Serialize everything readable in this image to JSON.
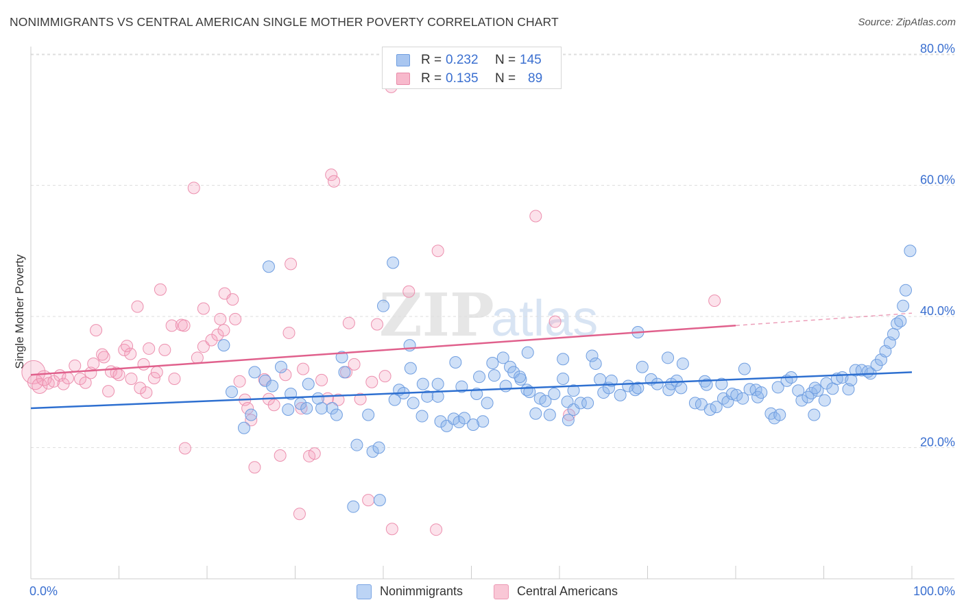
{
  "header": {
    "title": "NONIMMIGRANTS VS CENTRAL AMERICAN SINGLE MOTHER POVERTY CORRELATION CHART",
    "source": "Source: ZipAtlas.com"
  },
  "watermark": {
    "text_zip": "ZIP",
    "text_atlas": "atlas"
  },
  "legend_top": {
    "rows": [
      {
        "r_label": "R =",
        "r_value": "0.232",
        "n_label": "N =",
        "n_value": "145",
        "color": "#a9c6f0",
        "border": "#6e9de0"
      },
      {
        "r_label": "R =",
        "r_value": "0.135",
        "n_label": "N =",
        "n_value": "89",
        "color": "#f7b9cc",
        "border": "#e889a8"
      }
    ]
  },
  "legend_bottom": {
    "items": [
      {
        "label": "Nonimmigrants",
        "color": "#bcd4f5",
        "border": "#7aa5e3"
      },
      {
        "label": "Central Americans",
        "color": "#f9c7d6",
        "border": "#ec98b4"
      }
    ]
  },
  "colors": {
    "blue_fill": "rgba(140,180,235,0.42)",
    "blue_stroke": "#6e9de0",
    "blue_line": "#2d6fd0",
    "pink_fill": "rgba(244,160,190,0.30)",
    "pink_stroke": "#ec8fae",
    "pink_line": "#e0608c",
    "grid": "#dddddd",
    "axis_text": "#3a6fd0"
  },
  "chart_data": {
    "type": "scatter",
    "title": "NONIMMIGRANTS VS CENTRAL AMERICAN SINGLE MOTHER POVERTY CORRELATION CHART",
    "xlabel": "",
    "ylabel": "Single Mother Poverty",
    "xlim": [
      0,
      100
    ],
    "ylim": [
      0,
      80
    ],
    "x_tick_labels": [
      "0.0%",
      "100.0%"
    ],
    "y_ticks": [
      20,
      40,
      60,
      80
    ],
    "y_tick_labels": [
      "20.0%",
      "40.0%",
      "60.0%",
      "80.0%"
    ],
    "grid": "horizontal dashed",
    "legend_position": "bottom",
    "series": [
      {
        "name": "Nonimmigrants",
        "r": 0.232,
        "n": 145,
        "trend": {
          "x": [
            0,
            100
          ],
          "y": [
            26.0,
            31.5
          ],
          "dashed_from": null
        },
        "points": [
          [
            21.9,
            35.6
          ],
          [
            25.4,
            31.5
          ],
          [
            22.8,
            28.5
          ],
          [
            25.0,
            25.0
          ],
          [
            24.2,
            23.0
          ],
          [
            26.6,
            30.2
          ],
          [
            27.0,
            47.6
          ],
          [
            28.4,
            32.3
          ],
          [
            27.4,
            29.4
          ],
          [
            29.5,
            28.2
          ],
          [
            29.2,
            25.8
          ],
          [
            30.6,
            26.7
          ],
          [
            31.5,
            29.7
          ],
          [
            31.3,
            26.0
          ],
          [
            33.0,
            26.0
          ],
          [
            32.6,
            27.5
          ],
          [
            34.2,
            26.0
          ],
          [
            35.6,
            31.5
          ],
          [
            35.3,
            33.8
          ],
          [
            34.7,
            25.0
          ],
          [
            37.0,
            20.4
          ],
          [
            38.3,
            25.0
          ],
          [
            38.8,
            19.4
          ],
          [
            39.5,
            20.0
          ],
          [
            36.6,
            11.0
          ],
          [
            39.6,
            12.0
          ],
          [
            40.0,
            41.6
          ],
          [
            41.1,
            48.2
          ],
          [
            41.3,
            27.3
          ],
          [
            41.8,
            28.8
          ],
          [
            43.0,
            35.6
          ],
          [
            43.1,
            32.1
          ],
          [
            43.4,
            26.8
          ],
          [
            44.5,
            29.7
          ],
          [
            44.4,
            24.8
          ],
          [
            45.0,
            27.8
          ],
          [
            46.2,
            27.8
          ],
          [
            46.2,
            29.7
          ],
          [
            46.5,
            24.0
          ],
          [
            47.2,
            23.3
          ],
          [
            48.0,
            24.4
          ],
          [
            48.6,
            23.9
          ],
          [
            48.9,
            29.3
          ],
          [
            49.2,
            24.5
          ],
          [
            50.6,
            28.2
          ],
          [
            51.3,
            24.0
          ],
          [
            50.2,
            23.5
          ],
          [
            50.9,
            30.8
          ],
          [
            51.8,
            26.8
          ],
          [
            52.6,
            31.0
          ],
          [
            52.4,
            32.9
          ],
          [
            53.6,
            33.7
          ],
          [
            54.4,
            32.3
          ],
          [
            54.8,
            31.5
          ],
          [
            55.6,
            30.4
          ],
          [
            56.3,
            28.8
          ],
          [
            56.6,
            28.5
          ],
          [
            56.4,
            34.5
          ],
          [
            57.3,
            25.2
          ],
          [
            57.8,
            27.5
          ],
          [
            58.4,
            27.1
          ],
          [
            58.9,
            25.0
          ],
          [
            59.4,
            28.2
          ],
          [
            60.4,
            30.5
          ],
          [
            60.4,
            33.5
          ],
          [
            60.9,
            27.0
          ],
          [
            61.6,
            25.8
          ],
          [
            61.6,
            28.7
          ],
          [
            62.4,
            26.8
          ],
          [
            63.2,
            26.8
          ],
          [
            63.7,
            34.0
          ],
          [
            64.1,
            32.8
          ],
          [
            64.6,
            30.4
          ],
          [
            65.0,
            28.4
          ],
          [
            65.6,
            29.1
          ],
          [
            65.9,
            30.2
          ],
          [
            66.9,
            28.0
          ],
          [
            67.8,
            29.4
          ],
          [
            68.6,
            28.8
          ],
          [
            68.9,
            29.1
          ],
          [
            69.4,
            32.3
          ],
          [
            68.9,
            37.6
          ],
          [
            70.4,
            30.4
          ],
          [
            71.1,
            29.7
          ],
          [
            72.3,
            33.7
          ],
          [
            72.4,
            28.8
          ],
          [
            72.7,
            29.7
          ],
          [
            73.3,
            30.2
          ],
          [
            74.0,
            32.8
          ],
          [
            73.8,
            29.1
          ],
          [
            75.4,
            26.8
          ],
          [
            76.1,
            26.6
          ],
          [
            76.5,
            30.1
          ],
          [
            76.7,
            29.6
          ],
          [
            77.1,
            25.8
          ],
          [
            77.8,
            26.2
          ],
          [
            78.4,
            29.7
          ],
          [
            78.6,
            27.5
          ],
          [
            79.1,
            27.0
          ],
          [
            79.6,
            28.2
          ],
          [
            80.1,
            28.0
          ],
          [
            80.8,
            27.5
          ],
          [
            81.0,
            32.0
          ],
          [
            81.6,
            28.9
          ],
          [
            82.3,
            28.8
          ],
          [
            82.5,
            27.7
          ],
          [
            82.9,
            28.4
          ],
          [
            84.0,
            25.2
          ],
          [
            84.4,
            24.5
          ],
          [
            85.0,
            25.0
          ],
          [
            84.8,
            29.2
          ],
          [
            85.8,
            30.2
          ],
          [
            86.3,
            30.7
          ],
          [
            87.1,
            28.7
          ],
          [
            87.5,
            27.2
          ],
          [
            88.2,
            27.7
          ],
          [
            88.6,
            28.3
          ],
          [
            89.3,
            28.7
          ],
          [
            89.0,
            29.1
          ],
          [
            90.1,
            27.2
          ],
          [
            90.3,
            29.8
          ],
          [
            91.0,
            29.0
          ],
          [
            91.5,
            30.5
          ],
          [
            92.1,
            30.7
          ],
          [
            92.8,
            28.9
          ],
          [
            93.1,
            30.3
          ],
          [
            93.6,
            31.8
          ],
          [
            94.3,
            31.8
          ],
          [
            95.3,
            31.3
          ],
          [
            95.0,
            31.6
          ],
          [
            96.0,
            32.6
          ],
          [
            96.5,
            33.4
          ],
          [
            97.0,
            34.7
          ],
          [
            97.5,
            36.0
          ],
          [
            97.9,
            37.3
          ],
          [
            98.3,
            38.9
          ],
          [
            98.7,
            39.3
          ],
          [
            99.0,
            41.6
          ],
          [
            99.3,
            44.0
          ],
          [
            99.8,
            50.0
          ],
          [
            88.9,
            25.0
          ],
          [
            48.2,
            33.0
          ],
          [
            53.9,
            29.4
          ],
          [
            42.3,
            28.3
          ],
          [
            55.5,
            30.8
          ],
          [
            61.0,
            24.2
          ]
        ]
      },
      {
        "name": "Central Americans",
        "r": 0.135,
        "n": 89,
        "trend": {
          "x": [
            0,
            100
          ],
          "y": [
            31.1,
            40.5
          ],
          "dashed_from": 80.0
        },
        "points": [
          [
            0.3,
            31.5
          ],
          [
            0.5,
            30.0
          ],
          [
            1.0,
            29.4
          ],
          [
            1.5,
            30.6
          ],
          [
            2.0,
            29.8
          ],
          [
            2.6,
            30.1
          ],
          [
            3.3,
            31.0
          ],
          [
            3.7,
            29.7
          ],
          [
            4.2,
            30.6
          ],
          [
            5.0,
            32.5
          ],
          [
            5.6,
            30.5
          ],
          [
            6.2,
            29.9
          ],
          [
            6.8,
            31.4
          ],
          [
            7.1,
            32.8
          ],
          [
            7.4,
            37.9
          ],
          [
            8.3,
            33.8
          ],
          [
            8.1,
            34.2
          ],
          [
            8.8,
            28.6
          ],
          [
            9.1,
            31.6
          ],
          [
            9.7,
            31.4
          ],
          [
            10.0,
            31.1
          ],
          [
            10.6,
            34.9
          ],
          [
            10.9,
            35.5
          ],
          [
            11.3,
            34.3
          ],
          [
            11.4,
            30.5
          ],
          [
            12.1,
            41.5
          ],
          [
            12.8,
            32.7
          ],
          [
            12.4,
            29.1
          ],
          [
            13.1,
            28.4
          ],
          [
            13.4,
            35.1
          ],
          [
            14.0,
            30.6
          ],
          [
            14.3,
            31.5
          ],
          [
            14.7,
            44.1
          ],
          [
            15.2,
            34.9
          ],
          [
            16.3,
            30.5
          ],
          [
            16.0,
            38.6
          ],
          [
            17.1,
            38.7
          ],
          [
            17.4,
            38.6
          ],
          [
            17.5,
            19.9
          ],
          [
            18.5,
            59.6
          ],
          [
            18.9,
            33.7
          ],
          [
            19.6,
            35.4
          ],
          [
            19.6,
            41.2
          ],
          [
            20.5,
            36.4
          ],
          [
            21.2,
            37.2
          ],
          [
            21.5,
            39.6
          ],
          [
            21.9,
            37.9
          ],
          [
            22.0,
            43.5
          ],
          [
            22.9,
            42.6
          ],
          [
            23.2,
            39.6
          ],
          [
            23.7,
            30.1
          ],
          [
            24.3,
            27.3
          ],
          [
            24.6,
            26.0
          ],
          [
            25.0,
            24.2
          ],
          [
            25.4,
            17.0
          ],
          [
            26.5,
            30.4
          ],
          [
            27.0,
            27.4
          ],
          [
            27.6,
            26.5
          ],
          [
            28.3,
            18.8
          ],
          [
            28.9,
            31.1
          ],
          [
            29.3,
            37.5
          ],
          [
            29.5,
            48.0
          ],
          [
            30.5,
            9.9
          ],
          [
            30.9,
            32.0
          ],
          [
            31.6,
            18.7
          ],
          [
            32.2,
            19.1
          ],
          [
            33.0,
            30.3
          ],
          [
            33.7,
            27.5
          ],
          [
            34.1,
            61.6
          ],
          [
            34.4,
            60.6
          ],
          [
            34.9,
            27.3
          ],
          [
            35.8,
            31.5
          ],
          [
            36.1,
            39.0
          ],
          [
            36.7,
            32.7
          ],
          [
            37.4,
            27.4
          ],
          [
            38.3,
            12.0
          ],
          [
            38.7,
            30.0
          ],
          [
            39.3,
            38.8
          ],
          [
            40.2,
            30.9
          ],
          [
            40.9,
            75.0
          ],
          [
            41.0,
            7.6
          ],
          [
            42.9,
            43.8
          ],
          [
            46.2,
            50.0
          ],
          [
            46.0,
            7.5
          ],
          [
            57.3,
            55.3
          ],
          [
            59.5,
            39.2
          ],
          [
            61.1,
            25.0
          ],
          [
            77.6,
            42.4
          ],
          [
            30.7,
            26.0
          ]
        ]
      }
    ]
  }
}
